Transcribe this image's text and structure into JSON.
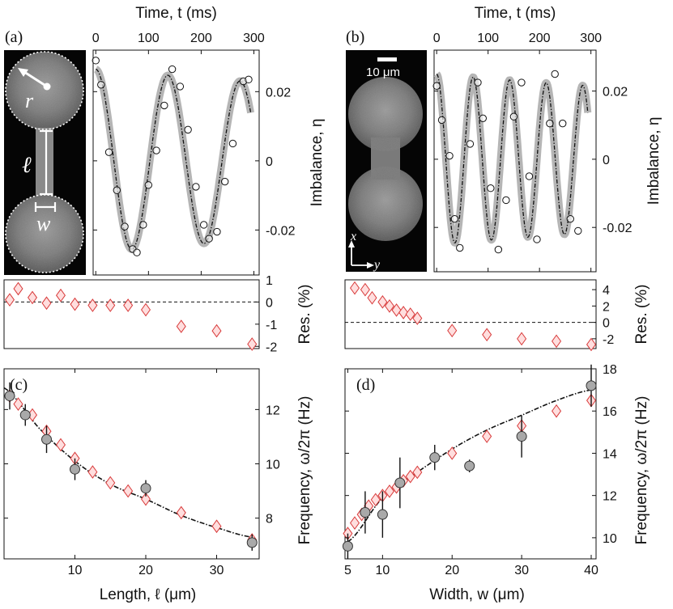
{
  "panels": {
    "a": {
      "label": "(a)"
    },
    "b": {
      "label": "(b)"
    },
    "c": {
      "label": "(c)"
    },
    "d": {
      "label": "(d)"
    }
  },
  "image_a": {
    "r_label": "r",
    "l_label": "ℓ",
    "w_label": "w"
  },
  "image_b": {
    "scale_label": "10 μm",
    "x_label": "x",
    "y_label": "y"
  },
  "chart_data": [
    {
      "id": "time-a",
      "type": "scatter",
      "title": "",
      "xlabel": "Time, t (ms)",
      "ylabel": "Imbalance, η",
      "xlim": [
        -5,
        310
      ],
      "ylim": [
        -0.033,
        0.032
      ],
      "xticks": [
        0,
        100,
        200,
        300
      ],
      "xtick_labels": [
        "0",
        "100",
        "200",
        "300"
      ],
      "yticks": [
        0.02,
        0,
        -0.02
      ],
      "ytick_labels": [
        "0.02",
        "0",
        "-0.02"
      ],
      "fit": {
        "amplitude": 0.0265,
        "period_ms": 137,
        "damping_ms": 2000
      },
      "series": [
        {
          "name": "data",
          "x": [
            0,
            10,
            25,
            40,
            55,
            70,
            78,
            90,
            100,
            115,
            130,
            145,
            160,
            175,
            190,
            205,
            215,
            230,
            245,
            260,
            280,
            290
          ],
          "y": [
            0.029,
            0.022,
            0.0025,
            -0.0085,
            -0.019,
            -0.0255,
            -0.0265,
            -0.0185,
            -0.007,
            0.003,
            0.016,
            0.0265,
            0.0215,
            0.009,
            -0.0075,
            -0.0185,
            -0.0225,
            -0.0205,
            -0.006,
            0.005,
            0.023,
            0.0235
          ]
        }
      ]
    },
    {
      "id": "time-b",
      "type": "scatter",
      "title": "",
      "xlabel": "Time, t (ms)",
      "ylabel": "Imbalance, η",
      "xlim": [
        -5,
        310
      ],
      "ylim": [
        -0.033,
        0.032
      ],
      "xticks": [
        0,
        100,
        200,
        300
      ],
      "xtick_labels": [
        "0",
        "100",
        "200",
        "300"
      ],
      "yticks": [
        0.02,
        0,
        -0.02
      ],
      "ytick_labels": [
        "0.02",
        "0",
        "-0.02"
      ],
      "fit": {
        "amplitude": 0.025,
        "period_ms": 71,
        "damping_ms": 2000
      },
      "series": [
        {
          "name": "data",
          "x": [
            0,
            10,
            25,
            35,
            45,
            65,
            80,
            90,
            105,
            120,
            135,
            150,
            165,
            180,
            195,
            220,
            230,
            245,
            260,
            275
          ],
          "y": [
            0.0215,
            0.0115,
            0.001,
            -0.0175,
            -0.026,
            0.0045,
            0.0225,
            0.012,
            -0.0085,
            -0.0265,
            -0.012,
            0.0125,
            0.0225,
            -0.005,
            -0.0235,
            0.0105,
            0.025,
            0.0105,
            -0.0175,
            -0.021
          ]
        }
      ]
    },
    {
      "id": "res-a",
      "type": "scatter",
      "ylabel": "Res. (%)",
      "xlim": [
        0,
        36
      ],
      "ylim": [
        -2.1,
        1.0
      ],
      "yticks": [
        1,
        0,
        -1,
        -2
      ],
      "ytick_labels": [
        "1",
        "0",
        "-1",
        "-2"
      ],
      "baseline": 0,
      "series": [
        {
          "name": "residuals",
          "x": [
            0.8,
            2,
            4,
            6,
            8,
            10,
            12.5,
            15,
            17.5,
            20,
            25,
            30,
            35
          ],
          "y": [
            0.1,
            0.6,
            0.2,
            -0.05,
            0.3,
            -0.1,
            -0.15,
            -0.15,
            -0.15,
            -0.35,
            -1.1,
            -1.3,
            -1.9
          ]
        }
      ]
    },
    {
      "id": "res-b",
      "type": "scatter",
      "ylabel": "Res. (%)",
      "xlim": [
        4.6,
        40.7
      ],
      "ylim": [
        -3.2,
        5.2
      ],
      "yticks": [
        4,
        2,
        0,
        -2
      ],
      "ytick_labels": [
        "4",
        "2",
        "0",
        "-2"
      ],
      "baseline": 0,
      "series": [
        {
          "name": "residuals",
          "x": [
            6,
            7.5,
            8.5,
            10,
            11,
            12,
            13,
            14,
            15,
            20,
            25,
            30,
            35,
            40
          ],
          "y": [
            4.2,
            4.0,
            3.0,
            2.5,
            2.0,
            1.5,
            1.2,
            1.0,
            0.5,
            -1.0,
            -1.5,
            -2.0,
            -2.3,
            -2.7
          ]
        }
      ]
    },
    {
      "id": "freq-c",
      "type": "scatter",
      "xlabel": "Length, ℓ (μm)",
      "ylabel": "Frequency, ω/2π (Hz)",
      "xlim": [
        0,
        36
      ],
      "ylim": [
        6.5,
        13.5
      ],
      "xticks": [
        10,
        20,
        30
      ],
      "xtick_labels": [
        "10",
        "20",
        "30"
      ],
      "yticks": [
        8,
        10,
        12
      ],
      "ytick_labels": [
        "8",
        "10",
        "12"
      ],
      "series": [
        {
          "name": "experiment",
          "x": [
            0.8,
            3,
            6,
            10,
            20,
            35
          ],
          "y": [
            12.5,
            11.8,
            10.9,
            9.8,
            9.1,
            7.1
          ],
          "yerr": [
            0.5,
            0.4,
            0.5,
            0.4,
            0.3,
            0.3
          ]
        },
        {
          "name": "simulation",
          "x": [
            0.8,
            2,
            4,
            6,
            8,
            10,
            12.5,
            15,
            17.5,
            20,
            25,
            30,
            35
          ],
          "y": [
            12.5,
            12.2,
            11.8,
            11.2,
            10.7,
            10.2,
            9.7,
            9.3,
            9.0,
            8.7,
            8.2,
            7.7,
            7.2
          ]
        },
        {
          "name": "fit",
          "x": [
            0,
            5,
            10,
            15,
            20,
            25,
            30,
            35
          ],
          "y": [
            12.8,
            11.3,
            10.1,
            9.25,
            8.7,
            8.1,
            7.65,
            7.3
          ]
        }
      ]
    },
    {
      "id": "freq-d",
      "type": "scatter",
      "xlabel": "Width, w (μm)",
      "ylabel": "Frequency, ω/2π (Hz)",
      "xlim": [
        4.6,
        40.7
      ],
      "ylim": [
        9,
        18
      ],
      "xticks": [
        5,
        10,
        20,
        30,
        40
      ],
      "xtick_labels": [
        "5",
        "10",
        "20",
        "30",
        "40"
      ],
      "yticks": [
        10,
        12,
        14,
        16,
        18
      ],
      "ytick_labels": [
        "10",
        "12",
        "14",
        "16",
        "18"
      ],
      "series": [
        {
          "name": "experiment",
          "x": [
            5,
            7.5,
            10,
            12.5,
            17.5,
            22.5,
            30,
            40
          ],
          "y": [
            9.6,
            11.2,
            11.1,
            12.6,
            13.8,
            13.4,
            14.8,
            17.2
          ],
          "yerr": [
            0.6,
            1.0,
            1.1,
            1.2,
            0.6,
            0.3,
            1.0,
            1.0
          ]
        },
        {
          "name": "simulation",
          "x": [
            5,
            6,
            7,
            8,
            9,
            10,
            11,
            12,
            13,
            14,
            15,
            20,
            25,
            30,
            35,
            40
          ],
          "y": [
            10.2,
            10.7,
            11.1,
            11.5,
            11.8,
            12.0,
            12.2,
            12.4,
            12.7,
            12.9,
            13.1,
            14.0,
            14.8,
            15.3,
            16.0,
            16.5
          ]
        },
        {
          "name": "fit",
          "x": [
            5,
            10,
            15,
            20,
            25,
            30,
            35,
            40
          ],
          "y": [
            9.8,
            11.9,
            13.1,
            14.2,
            15.1,
            15.8,
            16.5,
            17.0
          ]
        }
      ]
    }
  ]
}
